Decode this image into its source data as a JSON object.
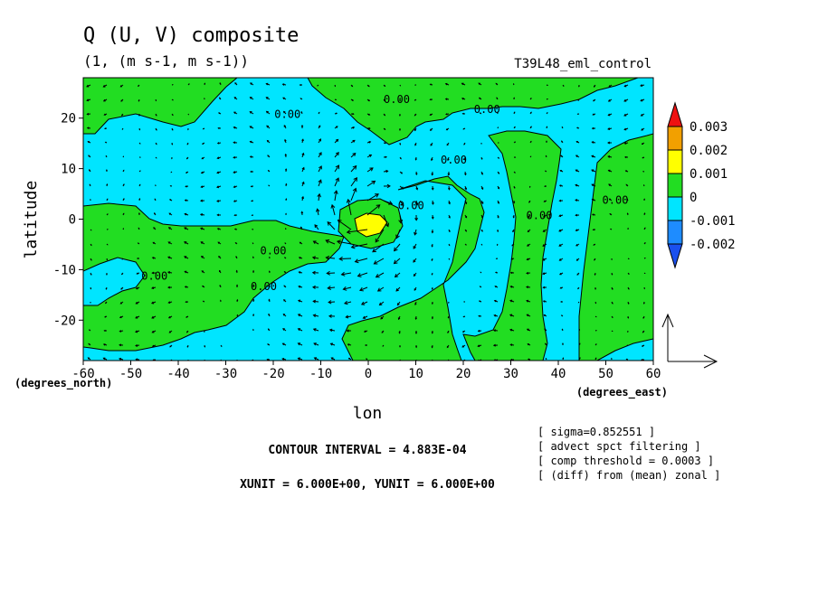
{
  "chart_data": {
    "type": "heatmap",
    "title": "Q (U, V) composite",
    "subtitle": "(1, (m s-1, m s-1))",
    "run_label": "T39L48_eml_control",
    "xlabel": "lon",
    "ylabel": "latitude",
    "x_unit_label": "(degrees_east)",
    "y_unit_label": "(degrees_north)",
    "xlim": [
      -60,
      60
    ],
    "ylim": [
      -28,
      28
    ],
    "x_ticks": [
      -60,
      -50,
      -40,
      -30,
      -20,
      -10,
      0,
      10,
      20,
      30,
      40,
      50,
      60
    ],
    "x_tick_labels": [
      "-60",
      "-50",
      "-40",
      "-30",
      "-20",
      "-10",
      "0",
      "10",
      "20",
      "30",
      "40",
      "50",
      "60"
    ],
    "y_ticks": [
      -20,
      -10,
      0,
      10,
      20
    ],
    "y_tick_labels": [
      "-20",
      "-10",
      "0",
      "10",
      "20"
    ],
    "colorbar": {
      "labels": [
        "0.003",
        "0.002",
        "0.001",
        "0",
        "-0.001",
        "-0.002"
      ],
      "bands": [
        {
          "from": 0.003,
          "to": null,
          "color": "#ee1111"
        },
        {
          "from": 0.002,
          "to": 0.003,
          "color": "#f2a000"
        },
        {
          "from": 0.001,
          "to": 0.002,
          "color": "#ffff00"
        },
        {
          "from": 0,
          "to": 0.001,
          "color": "#22dd22"
        },
        {
          "from": -0.001,
          "to": 0,
          "color": "#00e5ff"
        },
        {
          "from": -0.002,
          "to": -0.001,
          "color": "#1e8cff"
        },
        {
          "from": null,
          "to": -0.002,
          "color": "#1a50ee"
        }
      ]
    },
    "contour_labels": [
      {
        "lon": -17,
        "lat": 20,
        "text": "0.00"
      },
      {
        "lon": 6,
        "lat": 23,
        "text": "0.00"
      },
      {
        "lon": 25,
        "lat": 21,
        "text": "0.00"
      },
      {
        "lon": 18,
        "lat": 11,
        "text": "0.00"
      },
      {
        "lon": 9,
        "lat": 2,
        "text": "0.00"
      },
      {
        "lon": 36,
        "lat": 0,
        "text": "0.00"
      },
      {
        "lon": 52,
        "lat": 3,
        "text": "0.00"
      },
      {
        "lon": -20,
        "lat": -7,
        "text": "0.00"
      },
      {
        "lon": -45,
        "lat": -12,
        "text": "0.00"
      },
      {
        "lon": -22,
        "lat": -14,
        "text": "0.00"
      }
    ],
    "features": [
      {
        "kind": "positive anomaly maximum (>0.001)",
        "lon": 0,
        "lat": 0
      },
      {
        "kind": "wind vortex centre",
        "lon": 0,
        "lat": 0
      }
    ],
    "vector_reference": {
      "xunit": 6.0,
      "yunit": 6.0
    },
    "contour_interval_text": "CONTOUR INTERVAL = 4.883E-04",
    "unit_text": "XUNIT = 6.000E+00, YUNIT = 6.000E+00",
    "notes": [
      "[ sigma=0.852551 ]",
      "[ advect spct filtering ]",
      "[ comp threshold = 0.0003 ]",
      "[ (diff) from (mean) zonal ]"
    ]
  }
}
